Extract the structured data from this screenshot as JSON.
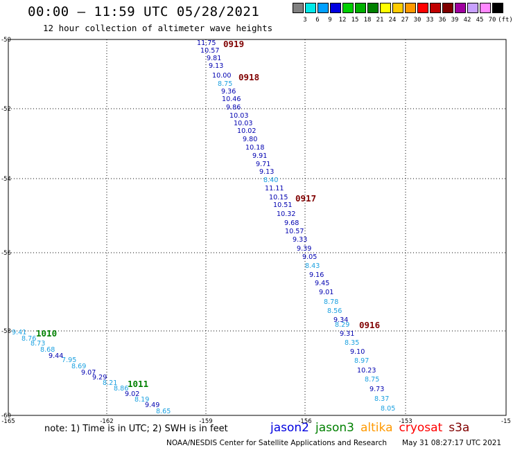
{
  "header": {
    "title": "00:00 – 11:59 UTC 05/28/2021",
    "subtitle": "12 hour collection of altimeter wave heights"
  },
  "color_scale": {
    "unit": "(ft)",
    "items": [
      {
        "label": "3",
        "color": "#808080"
      },
      {
        "label": "6",
        "color": "#00e8e8"
      },
      {
        "label": "9",
        "color": "#00a0ff"
      },
      {
        "label": "12",
        "color": "#0000e0"
      },
      {
        "label": "15",
        "color": "#00d000"
      },
      {
        "label": "18",
        "color": "#00b000"
      },
      {
        "label": "21",
        "color": "#008000"
      },
      {
        "label": "24",
        "color": "#ffff00"
      },
      {
        "label": "27",
        "color": "#ffcc00"
      },
      {
        "label": "30",
        "color": "#ff9900"
      },
      {
        "label": "33",
        "color": "#ff0000"
      },
      {
        "label": "36",
        "color": "#c00000"
      },
      {
        "label": "39",
        "color": "#800000"
      },
      {
        "label": "42",
        "color": "#a000a0"
      },
      {
        "label": "45",
        "color": "#c8a0ff"
      },
      {
        "label": "70",
        "color": "#ff88ff"
      },
      {
        "label": "",
        "color": "#000000"
      }
    ]
  },
  "axes": {
    "lat_ticks": [
      "-50",
      "-52",
      "-54",
      "-56",
      "-58",
      "-60"
    ],
    "lon_ticks": [
      "-165",
      "-162",
      "-159",
      "-156",
      "-153",
      "-15"
    ]
  },
  "observations": [
    {
      "text": "11.75",
      "color": "#0000b0"
    },
    {
      "text": "10.57",
      "color": "#0000b0"
    },
    {
      "text": "9.81",
      "color": "#0000b0"
    },
    {
      "text": "9.13",
      "color": "#0000b0"
    },
    {
      "text": "10.00",
      "color": "#0000b0"
    },
    {
      "text": "8.75",
      "color": "#1aa0e0"
    },
    {
      "text": "9.36",
      "color": "#0000b0"
    },
    {
      "text": "10.46",
      "color": "#0000b0"
    },
    {
      "text": "9.86",
      "color": "#0000b0"
    },
    {
      "text": "10.03",
      "color": "#0000b0"
    },
    {
      "text": "10.03",
      "color": "#0000b0"
    },
    {
      "text": "10.02",
      "color": "#0000b0"
    },
    {
      "text": "9.80",
      "color": "#0000b0"
    },
    {
      "text": "10.18",
      "color": "#0000b0"
    },
    {
      "text": "9.91",
      "color": "#0000b0"
    },
    {
      "text": "9.71",
      "color": "#0000b0"
    },
    {
      "text": "9.13",
      "color": "#0000b0"
    },
    {
      "text": "8.40",
      "color": "#1aa0e0"
    },
    {
      "text": "11.11",
      "color": "#0000b0"
    },
    {
      "text": "10.15",
      "color": "#0000b0"
    },
    {
      "text": "10.51",
      "color": "#0000b0"
    },
    {
      "text": "10.32",
      "color": "#0000b0"
    },
    {
      "text": "9.68",
      "color": "#0000b0"
    },
    {
      "text": "10.57",
      "color": "#0000b0"
    },
    {
      "text": "9.33",
      "color": "#0000b0"
    },
    {
      "text": "9.39",
      "color": "#0000b0"
    },
    {
      "text": "9.05",
      "color": "#0000b0"
    },
    {
      "text": "8.43",
      "color": "#1aa0e0"
    },
    {
      "text": "9.16",
      "color": "#0000b0"
    },
    {
      "text": "9.45",
      "color": "#0000b0"
    },
    {
      "text": "9.01",
      "color": "#0000b0"
    },
    {
      "text": "8.78",
      "color": "#1aa0e0"
    },
    {
      "text": "8.56",
      "color": "#1aa0e0"
    },
    {
      "text": "9.34",
      "color": "#0000b0"
    },
    {
      "text": "8.29",
      "color": "#1aa0e0"
    },
    {
      "text": "9.31",
      "color": "#0000b0"
    },
    {
      "text": "8.35",
      "color": "#1aa0e0"
    },
    {
      "text": "9.10",
      "color": "#0000b0"
    },
    {
      "text": "8.97",
      "color": "#1aa0e0"
    },
    {
      "text": "10.23",
      "color": "#0000b0"
    },
    {
      "text": "8.75",
      "color": "#1aa0e0"
    },
    {
      "text": "9.73",
      "color": "#0000b0"
    },
    {
      "text": "8.37",
      "color": "#1aa0e0"
    },
    {
      "text": "8.05",
      "color": "#1aa0e0"
    },
    {
      "text": "9.41",
      "color": "#1aa0e0"
    },
    {
      "text": "8.76",
      "color": "#1aa0e0"
    },
    {
      "text": "8.73",
      "color": "#1aa0e0"
    },
    {
      "text": "8.68",
      "color": "#1aa0e0"
    },
    {
      "text": "9.44",
      "color": "#0000b0"
    },
    {
      "text": "7.95",
      "color": "#1aa0e0"
    },
    {
      "text": "8.69",
      "color": "#1aa0e0"
    },
    {
      "text": "9.07",
      "color": "#0000b0"
    },
    {
      "text": "9.29",
      "color": "#0000b0"
    },
    {
      "text": "8.21",
      "color": "#1aa0e0"
    },
    {
      "text": "8.86",
      "color": "#1aa0e0"
    },
    {
      "text": "9.02",
      "color": "#0000b0"
    },
    {
      "text": "8.19",
      "color": "#1aa0e0"
    },
    {
      "text": "9.49",
      "color": "#0000b0"
    },
    {
      "text": "8.65",
      "color": "#1aa0e0"
    }
  ],
  "time_labels": [
    {
      "text": "0919",
      "color": "#800000"
    },
    {
      "text": "0918",
      "color": "#800000"
    },
    {
      "text": "0917",
      "color": "#800000"
    },
    {
      "text": "0916",
      "color": "#800000"
    },
    {
      "text": "1010",
      "color": "#008000"
    },
    {
      "text": "1011",
      "color": "#008000"
    }
  ],
  "footer": {
    "note": "note:  1) Time is in UTC;  2) SWH is in feet",
    "satellites": [
      {
        "name": "jason2",
        "color": "#0000e0"
      },
      {
        "name": "jason3",
        "color": "#008000"
      },
      {
        "name": "altika",
        "color": "#ff9900"
      },
      {
        "name": "cryosat",
        "color": "#ff0000"
      },
      {
        "name": "s3a",
        "color": "#800000"
      }
    ],
    "credit": "NOAA/NESDIS Center for Satellite Applications and Research",
    "timestamp": "May 31 08:27:17 UTC 2021"
  }
}
